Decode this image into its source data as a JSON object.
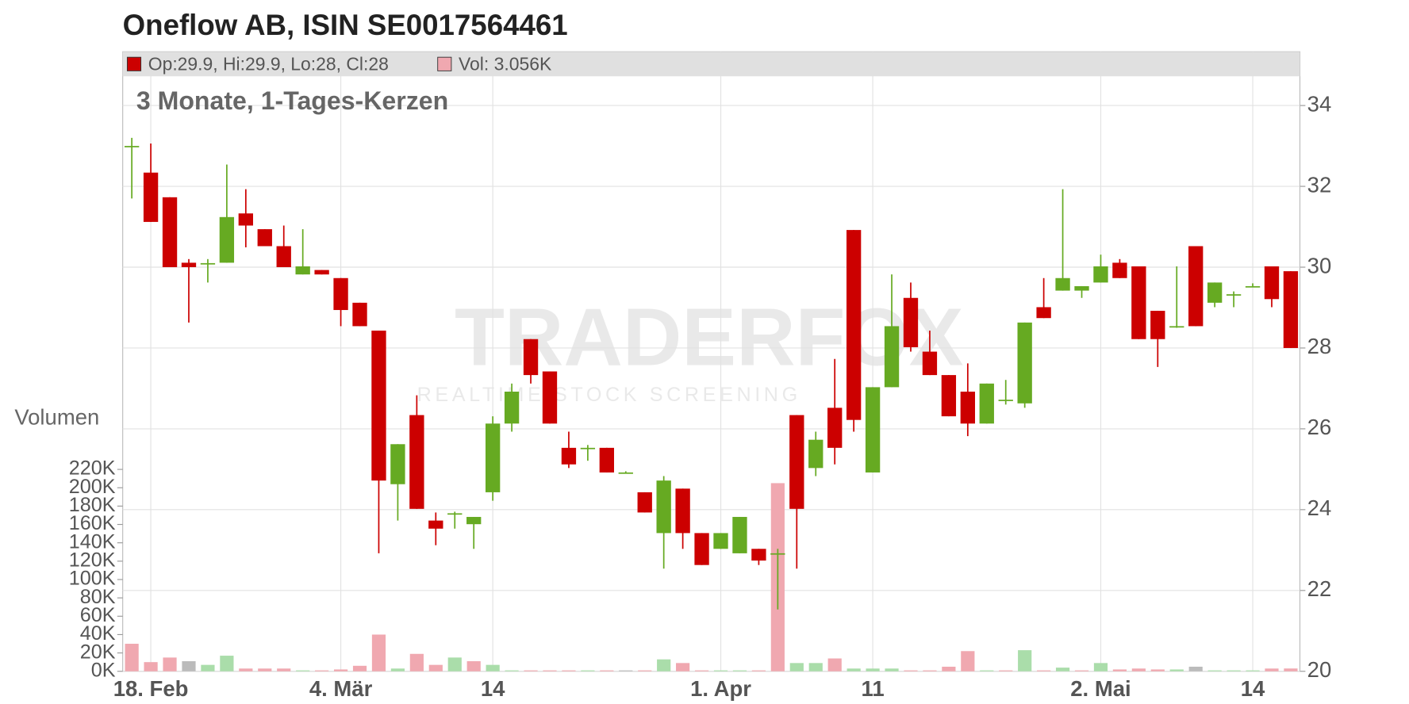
{
  "chart_data": {
    "type": "candlestick",
    "title": "Oneflow AB, ISIN SE0017564461",
    "subtitle": "3 Monate, 1-Tages-Kerzen",
    "legend": [
      {
        "label": "Op:29.9, Hi:29.9, Lo:28, Cl:28",
        "color": "#cc0000"
      },
      {
        "label": "Vol: 3.056K",
        "color": "#f0a8b0"
      }
    ],
    "volume_axis_label": "Volumen",
    "watermark": [
      "TRADERFOX",
      "REALTIME STOCK SCREENING"
    ],
    "categories": [
      null,
      "18. Feb",
      null,
      null,
      null,
      null,
      null,
      null,
      null,
      null,
      null,
      "4. Mär",
      null,
      null,
      null,
      null,
      null,
      null,
      null,
      "14",
      null,
      null,
      null,
      null,
      null,
      null,
      null,
      null,
      null,
      null,
      null,
      "1. Apr",
      null,
      null,
      null,
      null,
      null,
      null,
      null,
      "11",
      null,
      null,
      null,
      null,
      null,
      null,
      null,
      null,
      null,
      null,
      null,
      "2. Mai",
      null,
      null,
      null,
      null,
      null,
      null,
      null,
      "14",
      null,
      null
    ],
    "open": [
      33.0,
      32.34,
      31.73,
      30.11,
      30.1,
      30.11,
      31.33,
      30.94,
      30.52,
      29.82,
      29.93,
      29.73,
      29.12,
      28.43,
      24.63,
      26.34,
      23.73,
      23.91,
      23.64,
      24.43,
      26.13,
      28.22,
      27.42,
      25.53,
      25.53,
      25.53,
      24.92,
      24.43,
      23.42,
      24.52,
      23.42,
      23.03,
      22.92,
      23.03,
      22.92,
      26.34,
      25.03,
      26.52,
      30.92,
      24.92,
      27.03,
      29.24,
      27.91,
      27.33,
      26.92,
      26.13,
      26.72,
      26.63,
      29.01,
      29.42,
      29.42,
      29.62,
      30.11,
      30.02,
      28.92,
      28.54,
      30.52,
      29.12,
      29.33,
      29.53,
      30.02,
      29.9
    ],
    "high": [
      33.2,
      33.06,
      31.73,
      30.2,
      30.2,
      32.54,
      31.93,
      30.94,
      31.03,
      30.94,
      29.93,
      29.73,
      29.12,
      28.43,
      25.62,
      26.83,
      23.93,
      23.95,
      23.82,
      26.31,
      27.12,
      28.22,
      27.42,
      25.93,
      25.6,
      25.53,
      24.95,
      24.43,
      24.83,
      24.52,
      23.42,
      23.42,
      23.82,
      23.03,
      23.03,
      26.34,
      25.93,
      27.73,
      30.92,
      27.03,
      29.82,
      29.62,
      28.43,
      27.33,
      27.62,
      27.12,
      27.21,
      28.63,
      29.73,
      31.93,
      29.53,
      30.31,
      30.2,
      30.02,
      28.92,
      30.02,
      30.52,
      29.62,
      29.4,
      29.6,
      30.02,
      29.9
    ],
    "low": [
      31.7,
      31.12,
      30.0,
      28.63,
      29.62,
      30.11,
      30.49,
      30.52,
      30.0,
      29.82,
      29.82,
      28.54,
      28.54,
      22.92,
      23.73,
      24.02,
      23.12,
      23.53,
      23.03,
      24.22,
      25.93,
      27.12,
      26.13,
      25.03,
      25.21,
      24.92,
      24.9,
      23.93,
      22.54,
      23.03,
      22.63,
      23.03,
      22.92,
      22.63,
      21.53,
      22.54,
      24.83,
      25.12,
      25.93,
      24.92,
      27.03,
      27.91,
      27.33,
      26.31,
      25.82,
      26.13,
      26.6,
      26.52,
      28.74,
      29.42,
      29.24,
      29.62,
      29.73,
      28.22,
      27.53,
      28.5,
      28.54,
      29.01,
      29.01,
      29.5,
      29.01,
      28.0
    ],
    "close": [
      33.0,
      31.12,
      30.0,
      30.0,
      30.1,
      31.24,
      31.03,
      30.52,
      30.0,
      30.02,
      29.82,
      28.94,
      28.54,
      24.72,
      25.62,
      24.02,
      23.53,
      23.91,
      23.82,
      26.13,
      26.92,
      27.33,
      26.13,
      25.12,
      25.53,
      24.92,
      24.92,
      23.93,
      24.72,
      23.42,
      22.63,
      23.42,
      23.82,
      22.74,
      22.92,
      24.02,
      25.73,
      25.53,
      26.22,
      27.03,
      28.54,
      28.02,
      27.33,
      26.31,
      26.13,
      27.12,
      26.72,
      28.63,
      28.74,
      29.73,
      29.53,
      30.02,
      29.73,
      28.22,
      28.22,
      28.54,
      28.54,
      29.62,
      29.33,
      29.53,
      29.21,
      28.0
    ],
    "volume": [
      30000,
      10000,
      15000,
      11000,
      7000,
      17000,
      3000,
      3000,
      3000,
      1000,
      1000,
      2000,
      6000,
      40000,
      3000,
      19000,
      7000,
      15000,
      11000,
      7000,
      1000,
      1000,
      1000,
      1000,
      1000,
      1000,
      1000,
      1000,
      13000,
      9000,
      1000,
      1000,
      1000,
      1000,
      205000,
      9000,
      9000,
      14000,
      3000,
      3000,
      3000,
      1000,
      1000,
      5000,
      22000,
      1000,
      1000,
      23000,
      1000,
      4000,
      1000,
      9000,
      2000,
      3000,
      2000,
      2000,
      5000,
      1000,
      1000,
      1000,
      3000,
      3056
    ],
    "volume_colors": [
      "#f0a8b0",
      "#f0a8b0",
      "#f0a8b0",
      "#bbbbbb",
      "#aaddaa",
      "#aaddaa",
      "#f0a8b0",
      "#f0a8b0",
      "#f0a8b0",
      "#aaddaa",
      "#f0a8b0",
      "#f0a8b0",
      "#f0a8b0",
      "#f0a8b0",
      "#aaddaa",
      "#f0a8b0",
      "#f0a8b0",
      "#aaddaa",
      "#f0a8b0",
      "#aaddaa",
      "#aaddaa",
      "#f0a8b0",
      "#f0a8b0",
      "#f0a8b0",
      "#aaddaa",
      "#f0a8b0",
      "#bbbbbb",
      "#f0a8b0",
      "#aaddaa",
      "#f0a8b0",
      "#f0a8b0",
      "#aaddaa",
      "#aaddaa",
      "#f0a8b0",
      "#f0a8b0",
      "#aaddaa",
      "#aaddaa",
      "#f0a8b0",
      "#aaddaa",
      "#aaddaa",
      "#aaddaa",
      "#f0a8b0",
      "#f0a8b0",
      "#f0a8b0",
      "#f0a8b0",
      "#aaddaa",
      "#f0a8b0",
      "#aaddaa",
      "#f0a8b0",
      "#aaddaa",
      "#f0a8b0",
      "#aaddaa",
      "#f0a8b0",
      "#f0a8b0",
      "#f0a8b0",
      "#aaddaa",
      "#bbbbbb",
      "#aaddaa",
      "#aaddaa",
      "#aaddaa",
      "#f0a8b0",
      "#f0a8b0"
    ],
    "up_color": "#66aa22",
    "down_color": "#cc0000",
    "ylim": [
      20,
      35.33
    ],
    "yticks": [
      20,
      22,
      24,
      26,
      28,
      30,
      32,
      34
    ],
    "vlim": [
      0,
      675000
    ],
    "vticks": [
      {
        "value": 0,
        "label": "0K"
      },
      {
        "value": 20000,
        "label": "20K"
      },
      {
        "value": 40000,
        "label": "40K"
      },
      {
        "value": 60000,
        "label": "60K"
      },
      {
        "value": 80000,
        "label": "80K"
      },
      {
        "value": 100000,
        "label": "100K"
      },
      {
        "value": 120000,
        "label": "120K"
      },
      {
        "value": 140000,
        "label": "140K"
      },
      {
        "value": 160000,
        "label": "160K"
      },
      {
        "value": 180000,
        "label": "180K"
      },
      {
        "value": 200000,
        "label": "200K"
      },
      {
        "value": 220000,
        "label": "220K"
      }
    ],
    "grid": true
  }
}
